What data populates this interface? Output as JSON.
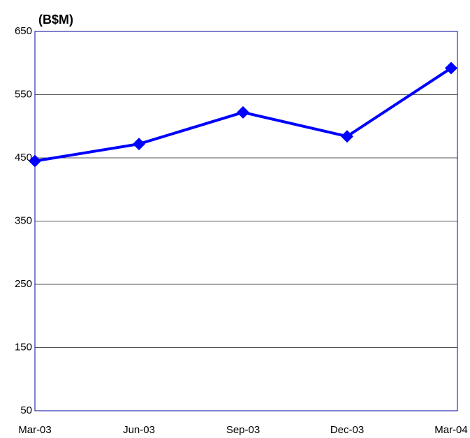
{
  "chart_data": {
    "type": "line",
    "title": "(B$M)",
    "categories": [
      "Mar-03",
      "Jun-03",
      "Sep-03",
      "Dec-03",
      "Mar-04"
    ],
    "values": [
      445,
      472,
      522,
      484,
      592
    ],
    "color": "#0000ff",
    "ylim": [
      50,
      650
    ],
    "yticks": [
      50,
      150,
      250,
      350,
      450,
      550,
      650
    ],
    "grid": true
  }
}
